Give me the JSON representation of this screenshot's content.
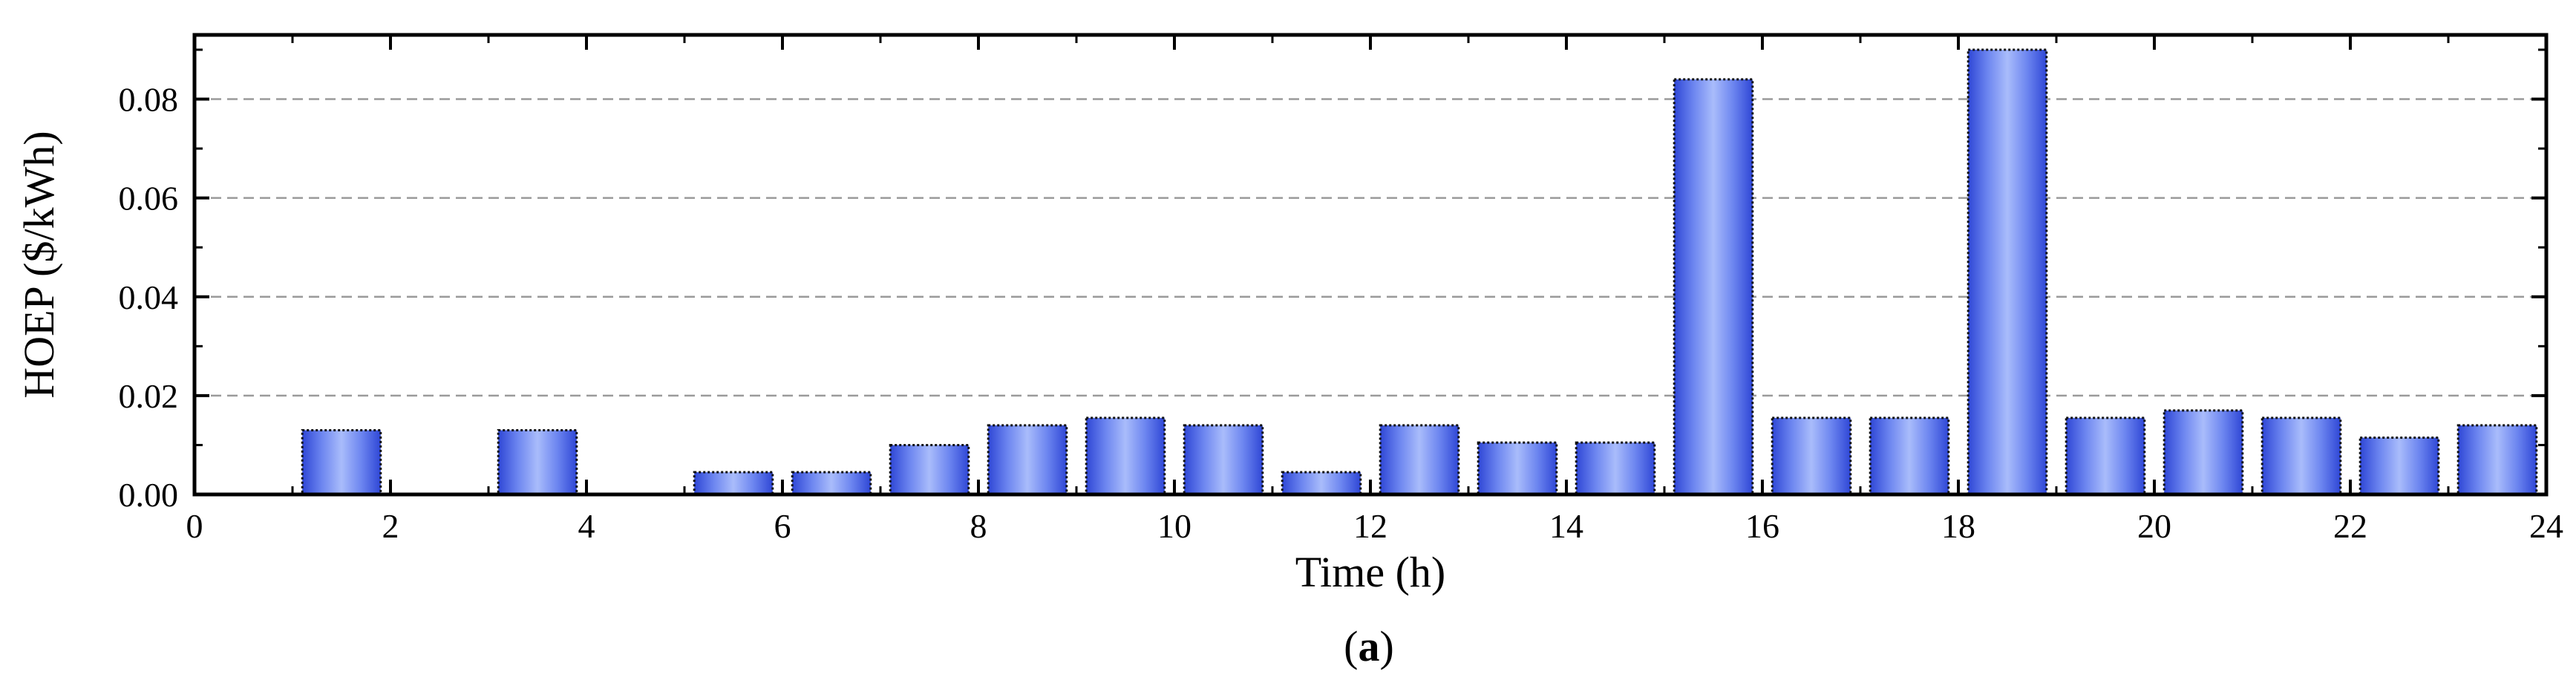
{
  "chart_data": {
    "type": "bar",
    "x": [
      1.5,
      3.5,
      5.5,
      6.5,
      7.5,
      8.5,
      9.5,
      10.5,
      11.5,
      12.5,
      13.5,
      14.5,
      15.5,
      16.5,
      17.5,
      18.5,
      19.5,
      20.5,
      21.5,
      22.5,
      23.5
    ],
    "values": [
      0.013,
      0.013,
      0.0045,
      0.0045,
      0.01,
      0.014,
      0.0155,
      0.014,
      0.0045,
      0.014,
      0.0105,
      0.0105,
      0.084,
      0.0155,
      0.0155,
      0.09,
      0.0155,
      0.017,
      0.0155,
      0.0115,
      0.014
    ],
    "xlabel": "Time (h)",
    "ylabel": "HOEP ($/kWh)",
    "xlim": [
      0,
      24
    ],
    "ylim": [
      0,
      0.093
    ],
    "xticks": [
      "0",
      "2",
      "4",
      "6",
      "8",
      "10",
      "12",
      "14",
      "16",
      "18",
      "20",
      "22",
      "24"
    ],
    "yticks": [
      "0.00",
      "0.02",
      "0.04",
      "0.06",
      "0.08"
    ],
    "grid": true,
    "bar_color": "#4a63e0",
    "caption_open": "(",
    "caption_letter": "a",
    "caption_close": ")"
  }
}
